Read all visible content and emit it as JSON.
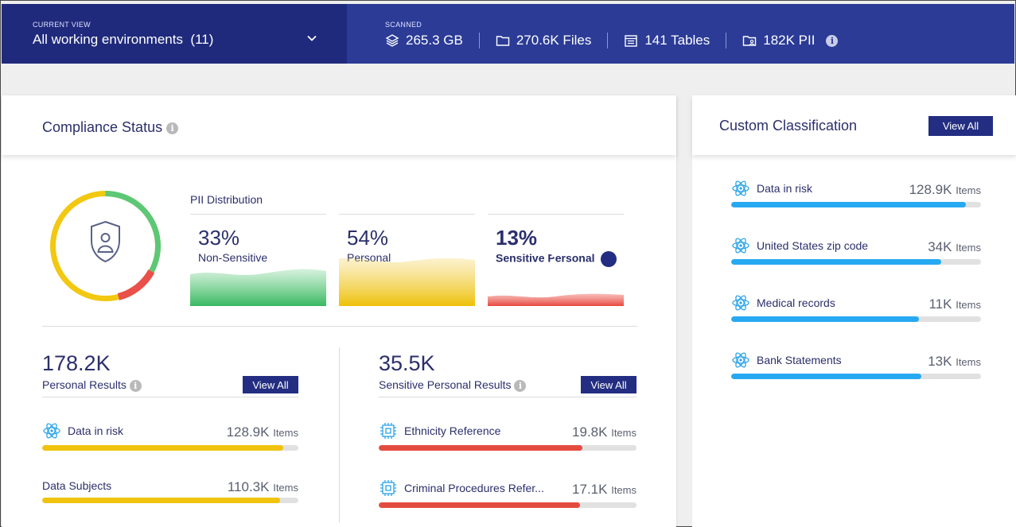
{
  "topbar": {
    "current_view_caption": "CURRENT VIEW",
    "current_view_value": "All working environments",
    "current_view_count": "(11)",
    "scanned_caption": "SCANNED",
    "stats": [
      {
        "icon": "layers-icon",
        "value": "265.3 GB"
      },
      {
        "icon": "folder-icon",
        "value": "270.6K Files"
      },
      {
        "icon": "table-icon",
        "value": "141 Tables"
      },
      {
        "icon": "pii-folder-icon",
        "value": "182K PII"
      }
    ]
  },
  "compliance": {
    "title": "Compliance Status",
    "pii_title": "PII Distribution",
    "distribution": [
      {
        "pct": "33%",
        "label": "Non-Sensitive",
        "color": "#5cc877"
      },
      {
        "pct": "54%",
        "label": "Personal",
        "color": "#f2c811"
      },
      {
        "pct": "13%",
        "label": "Sensitive Personal",
        "color": "#e9504a"
      }
    ],
    "donut_fractions": {
      "non_sensitive": 0.33,
      "personal": 0.54,
      "sensitive": 0.13
    },
    "personal": {
      "count": "178.2K",
      "label": "Personal Results",
      "view_all": "View All",
      "rows": [
        {
          "label": "Data in risk",
          "value": "128.9K",
          "unit": "Items",
          "fraction": 0.94,
          "icon": "atom-icon"
        },
        {
          "label": "Data Subjects",
          "value": "110.3K",
          "unit": "Items",
          "fraction": 0.93,
          "icon": ""
        }
      ],
      "bar_color": "#f0c30f"
    },
    "sensitive": {
      "count": "35.5K",
      "label": "Sensitive Personal Results",
      "view_all": "View All",
      "rows": [
        {
          "label": "Ethnicity Reference",
          "value": "19.8K",
          "unit": "Items",
          "fraction": 0.79,
          "icon": "chip-icon"
        },
        {
          "label": "Criminal Procedures Refer...",
          "value": "17.1K",
          "unit": "Items",
          "fraction": 0.78,
          "icon": "chip-icon"
        }
      ],
      "bar_color": "#e44b3f"
    }
  },
  "custom": {
    "title": "Custom Classification",
    "view_all": "View All",
    "bar_color": "#27a9f2",
    "rows": [
      {
        "label": "Data in risk",
        "value": "128.9K",
        "unit": "Items",
        "fraction": 0.94
      },
      {
        "label": "United States zip code",
        "value": "34K",
        "unit": "Items",
        "fraction": 0.84
      },
      {
        "label": "Medical records",
        "value": "11K",
        "unit": "Items",
        "fraction": 0.75
      },
      {
        "label": "Bank Statements",
        "value": "13K",
        "unit": "Items",
        "fraction": 0.76
      }
    ]
  }
}
